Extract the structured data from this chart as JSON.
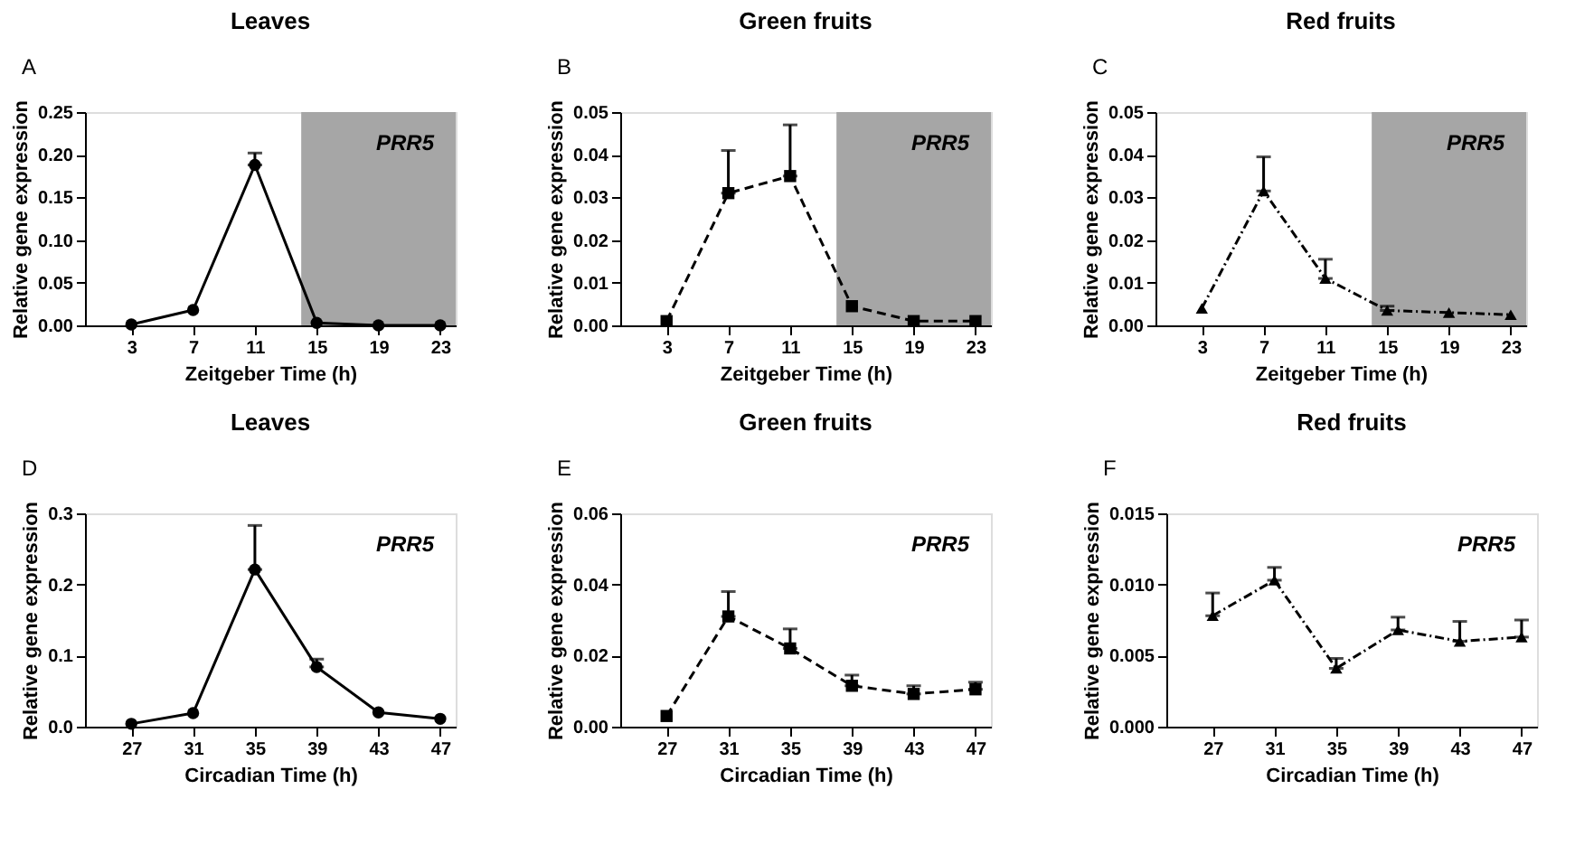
{
  "chart_data": [
    {
      "type": "line",
      "title": "Leaves",
      "xlabel": "Zeitgeber Time (h)",
      "ylabel": "Relative gene expression",
      "annotations": [
        "A",
        "PRR5"
      ],
      "x": [
        3,
        7,
        11,
        15,
        19,
        23
      ],
      "xlim": [
        0,
        24
      ],
      "xticks": [
        3,
        7,
        11,
        15,
        19,
        23
      ],
      "ylim": [
        0,
        0.25
      ],
      "yticks": [
        {
          "value": 0,
          "label": "0.00"
        },
        0.05,
        {
          "value": 0.1,
          "label": "0.10"
        },
        0.15,
        {
          "value": 0.2,
          "label": "0.20"
        },
        0.25
      ],
      "bands": [
        {
          "axis": "x",
          "from": 14,
          "to": 24,
          "color": "#a6a6a6"
        }
      ],
      "marker": "circle",
      "line_style": "solid",
      "grid": false,
      "legend": false,
      "series": [
        {
          "color": "#000000",
          "values": [
            0.001,
            0.018,
            0.188,
            0.003,
            0.0,
            0.0
          ],
          "errors": [
            null,
            null,
            [
              0.188,
              0.202
            ],
            null,
            null,
            null
          ]
        }
      ]
    },
    {
      "type": "line",
      "title": "Green fruits",
      "xlabel": "Zeitgeber Time (h)",
      "ylabel": "Relative gene expression",
      "annotations": [
        "B",
        "PRR5"
      ],
      "x": [
        3,
        7,
        11,
        15,
        19,
        23
      ],
      "xlim": [
        0,
        24
      ],
      "xticks": [
        3,
        7,
        11,
        15,
        19,
        23
      ],
      "ylim": [
        0,
        0.05
      ],
      "yticks": [
        {
          "value": 0,
          "label": "0.00"
        },
        0.01,
        0.02,
        0.03,
        0.04,
        0.05
      ],
      "bands": [
        {
          "axis": "x",
          "from": 14,
          "to": 24,
          "color": "#a6a6a6"
        }
      ],
      "marker": "square",
      "line_style": "dashed",
      "grid": false,
      "legend": false,
      "series": [
        {
          "color": "#000000",
          "values": [
            0.001,
            0.031,
            0.035,
            0.0045,
            0.001,
            0.001
          ],
          "errors": [
            null,
            [
              0.031,
              0.041
            ],
            [
              0.035,
              0.047
            ],
            null,
            null,
            null
          ]
        }
      ]
    },
    {
      "type": "line",
      "title": "Red fruits",
      "xlabel": "Zeitgeber Time (h)",
      "ylabel": "Relative gene expression",
      "annotations": [
        "C",
        "PRR5"
      ],
      "x": [
        3,
        7,
        11,
        15,
        19,
        23
      ],
      "xlim": [
        0,
        24
      ],
      "xticks": [
        3,
        7,
        11,
        15,
        19,
        23
      ],
      "ylim": [
        0,
        0.05
      ],
      "yticks": [
        {
          "value": 0,
          "label": "0.00"
        },
        0.01,
        0.02,
        0.03,
        0.04,
        0.05
      ],
      "bands": [
        {
          "axis": "x",
          "from": 14,
          "to": 24,
          "color": "#a6a6a6"
        }
      ],
      "marker": "triangle",
      "line_style": "dotted",
      "grid": false,
      "legend": false,
      "series": [
        {
          "color": "#000000",
          "values": [
            0.004,
            0.0315,
            0.011,
            0.0035,
            0.003,
            0.0025
          ],
          "errors": [
            null,
            [
              0.0315,
              0.0395
            ],
            [
              0.011,
              0.0155
            ],
            [
              0.0035,
              0.0045
            ],
            null,
            null
          ]
        }
      ]
    },
    {
      "type": "line",
      "title": "Leaves",
      "xlabel": "Circadian Time (h)",
      "ylabel": "Relative gene expression",
      "annotations": [
        "D",
        "PRR5"
      ],
      "x": [
        27,
        31,
        35,
        39,
        43,
        47
      ],
      "xlim": [
        24,
        48
      ],
      "xticks": [
        27,
        31,
        35,
        39,
        43,
        47
      ],
      "ylim": [
        0,
        0.3
      ],
      "yticks": [
        {
          "value": 0,
          "label": "0.0"
        },
        0.1,
        0.2,
        0.3
      ],
      "marker": "circle",
      "line_style": "solid",
      "grid": false,
      "legend": false,
      "series": [
        {
          "color": "#000000",
          "values": [
            0.004,
            0.019,
            0.221,
            0.084,
            0.02,
            0.011
          ],
          "errors": [
            null,
            null,
            [
              0.221,
              0.283
            ],
            [
              0.084,
              0.095
            ],
            null,
            null
          ]
        }
      ]
    },
    {
      "type": "line",
      "title": "Green fruits",
      "xlabel": "Circadian Time (h)",
      "ylabel": "Relative gene expression",
      "annotations": [
        "E",
        "PRR5"
      ],
      "x": [
        27,
        31,
        35,
        39,
        43,
        47
      ],
      "xlim": [
        24,
        48
      ],
      "xticks": [
        27,
        31,
        35,
        39,
        43,
        47
      ],
      "ylim": [
        0,
        0.06
      ],
      "yticks": [
        {
          "value": 0,
          "label": "0.00"
        },
        0.02,
        0.04,
        0.06
      ],
      "marker": "square",
      "line_style": "dashed",
      "grid": false,
      "legend": false,
      "series": [
        {
          "color": "#000000",
          "values": [
            0.003,
            0.031,
            0.022,
            0.0115,
            0.0092,
            0.0105
          ],
          "errors": [
            null,
            [
              0.031,
              0.038
            ],
            [
              0.022,
              0.0275
            ],
            [
              0.0115,
              0.0145
            ],
            [
              0.0092,
              0.0115
            ],
            [
              0.0105,
              0.0125
            ]
          ]
        }
      ]
    },
    {
      "type": "line",
      "title": "Red fruits",
      "xlabel": "Circadian Time (h)",
      "ylabel": "Relative gene expression",
      "annotations": [
        "F",
        "PRR5"
      ],
      "x": [
        27,
        31,
        35,
        39,
        43,
        47
      ],
      "xlim": [
        24,
        48
      ],
      "xticks": [
        27,
        31,
        35,
        39,
        43,
        47
      ],
      "ylim": [
        0,
        0.015
      ],
      "yticks": [
        {
          "value": 0,
          "label": "0.000"
        },
        0.005,
        {
          "value": 0.01,
          "label": "0.010"
        },
        0.015
      ],
      "marker": "triangle",
      "line_style": "dotted",
      "grid": false,
      "legend": false,
      "series": [
        {
          "color": "#000000",
          "values": [
            0.0078,
            0.0103,
            0.0041,
            0.0068,
            0.006,
            0.0063
          ],
          "errors": [
            [
              0.0078,
              0.0094
            ],
            [
              0.0103,
              0.0112
            ],
            [
              0.0041,
              0.0048
            ],
            [
              0.0068,
              0.0077
            ],
            [
              0.006,
              0.0074
            ],
            [
              0.0063,
              0.0075
            ]
          ]
        }
      ]
    }
  ]
}
